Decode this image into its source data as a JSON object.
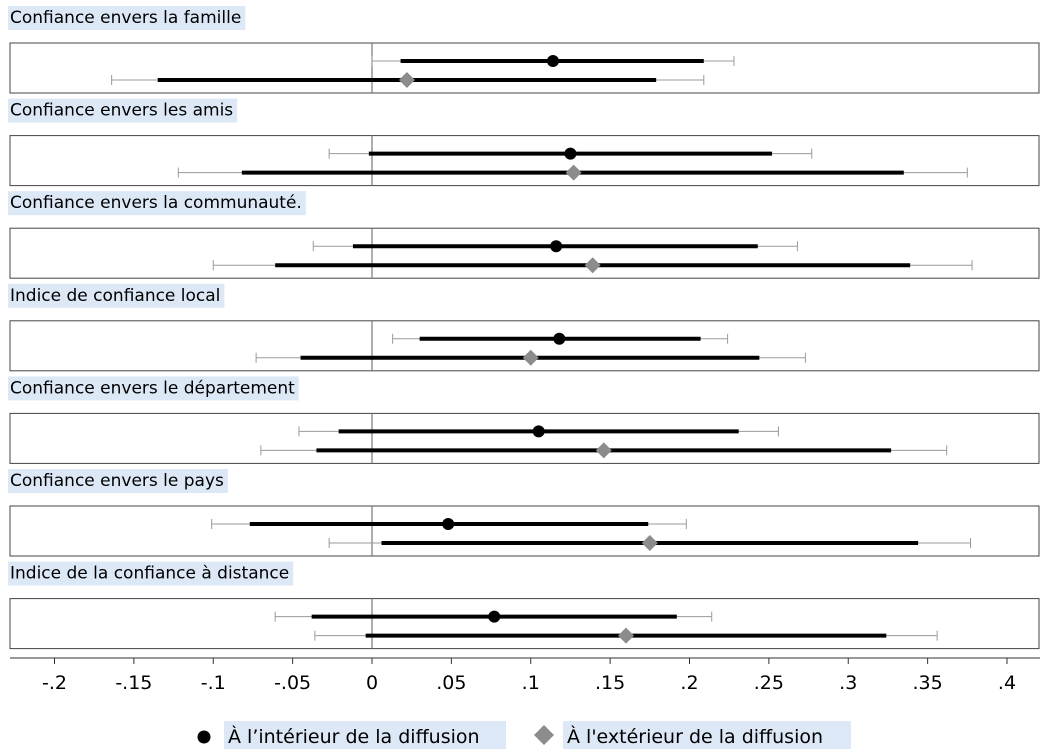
{
  "chart_data": {
    "type": "coefficient-plot",
    "xlim": [
      -0.2,
      0.4
    ],
    "x_ticks": [
      -0.2,
      -0.15,
      -0.1,
      -0.05,
      0,
      0.05,
      0.1,
      0.15,
      0.2,
      0.25,
      0.3,
      0.35,
      0.4
    ],
    "x_tick_labels": [
      "-.2",
      "-.15",
      "-.1",
      "-.05",
      "0",
      ".05",
      ".1",
      ".15",
      ".2",
      ".25",
      ".3",
      ".35",
      ".4"
    ],
    "series": [
      {
        "name": "À l’intérieur de la diffusion",
        "marker": "circle",
        "color": "#000000"
      },
      {
        "name": "À l'extérieur de la diffusion",
        "marker": "diamond",
        "color": "#8c8c8c"
      }
    ],
    "panels": [
      {
        "label": "Confiance envers la famille",
        "estimates": [
          {
            "point": 0.114,
            "ci95": [
              0.018,
              0.209
            ],
            "ci90": [
              0.0,
              0.228
            ]
          },
          {
            "point": 0.022,
            "ci95": [
              -0.135,
              0.179
            ],
            "ci90": [
              -0.164,
              0.209
            ]
          }
        ]
      },
      {
        "label": "Confiance envers les amis",
        "estimates": [
          {
            "point": 0.125,
            "ci95": [
              -0.002,
              0.252
            ],
            "ci90": [
              -0.027,
              0.277
            ]
          },
          {
            "point": 0.127,
            "ci95": [
              -0.082,
              0.335
            ],
            "ci90": [
              -0.122,
              0.375
            ]
          }
        ]
      },
      {
        "label": "Confiance envers la communauté.",
        "estimates": [
          {
            "point": 0.116,
            "ci95": [
              -0.012,
              0.243
            ],
            "ci90": [
              -0.037,
              0.268
            ]
          },
          {
            "point": 0.139,
            "ci95": [
              -0.061,
              0.339
            ],
            "ci90": [
              -0.1,
              0.378
            ]
          }
        ]
      },
      {
        "label": "Indice de confiance local",
        "estimates": [
          {
            "point": 0.118,
            "ci95": [
              0.03,
              0.207
            ],
            "ci90": [
              0.013,
              0.224
            ]
          },
          {
            "point": 0.1,
            "ci95": [
              -0.045,
              0.244
            ],
            "ci90": [
              -0.073,
              0.273
            ]
          }
        ]
      },
      {
        "label": "Confiance envers le département",
        "estimates": [
          {
            "point": 0.105,
            "ci95": [
              -0.021,
              0.231
            ],
            "ci90": [
              -0.046,
              0.256
            ]
          },
          {
            "point": 0.146,
            "ci95": [
              -0.035,
              0.327
            ],
            "ci90": [
              -0.07,
              0.362
            ]
          }
        ]
      },
      {
        "label": "Confiance envers le pays",
        "estimates": [
          {
            "point": 0.048,
            "ci95": [
              -0.077,
              0.174
            ],
            "ci90": [
              -0.101,
              0.198
            ]
          },
          {
            "point": 0.175,
            "ci95": [
              0.006,
              0.344
            ],
            "ci90": [
              -0.027,
              0.377
            ]
          }
        ]
      },
      {
        "label": "Indice de la confiance à distance",
        "estimates": [
          {
            "point": 0.077,
            "ci95": [
              -0.038,
              0.192
            ],
            "ci90": [
              -0.061,
              0.214
            ]
          },
          {
            "point": 0.16,
            "ci95": [
              -0.004,
              0.324
            ],
            "ci90": [
              -0.036,
              0.356
            ]
          }
        ]
      }
    ],
    "grid": false,
    "legend_position": "bottom"
  }
}
